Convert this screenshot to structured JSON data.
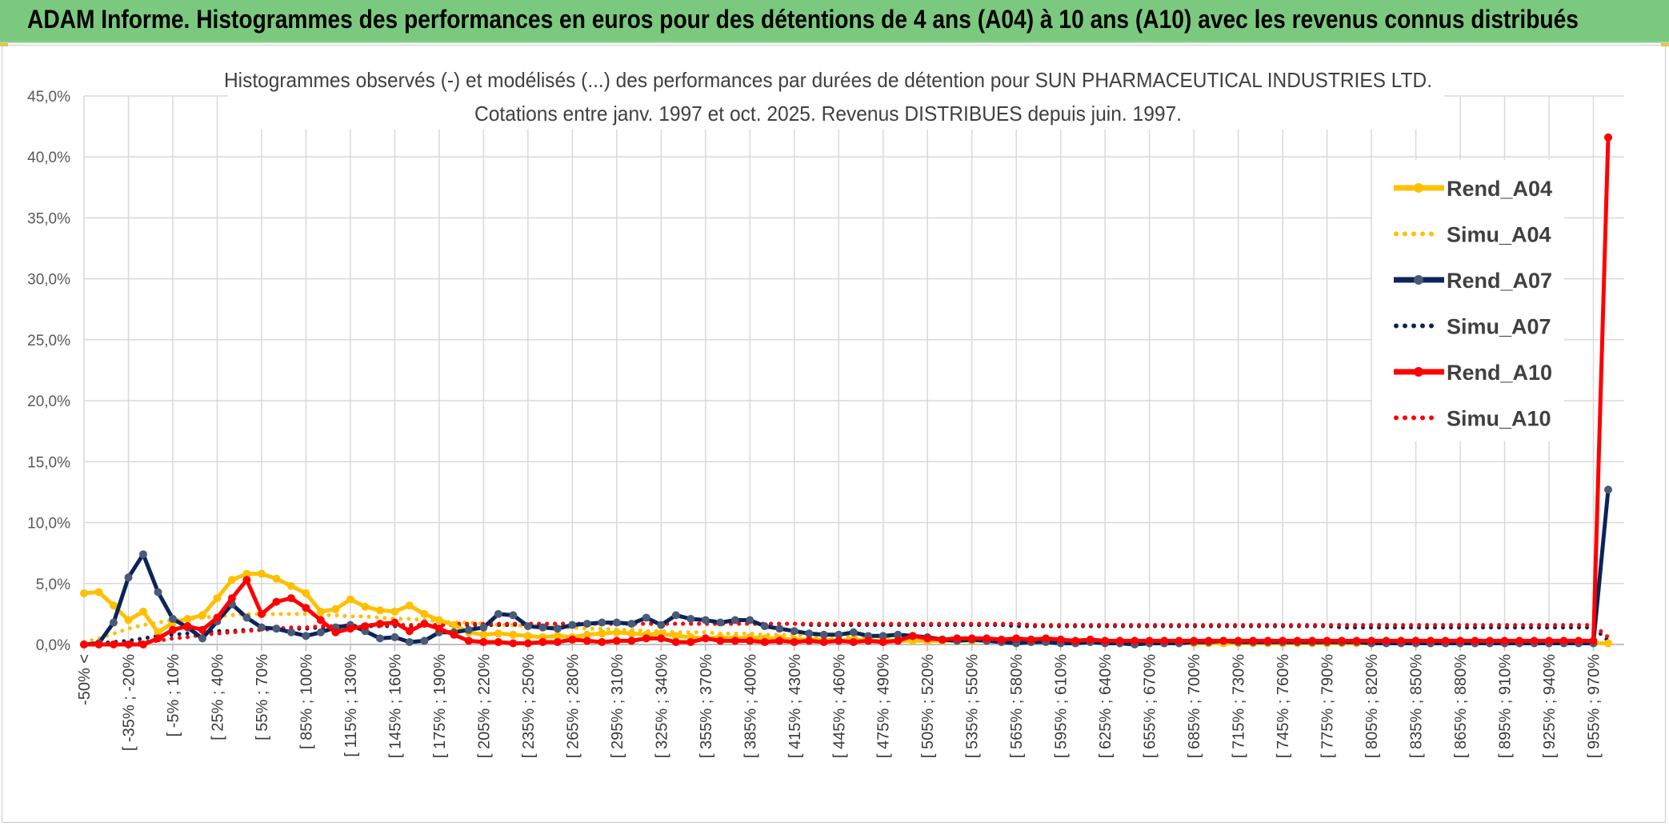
{
  "header": {
    "title": "ADAM Informe. Histogrammes des performances en euros pour des détentions de 4 ans (A04) à 10 ans (A10) avec les revenus connus distribués"
  },
  "chart_data": {
    "type": "line",
    "title": "Histogrammes observés (-) et modélisés (...) des performances par durées de détention pour SUN PHARMACEUTICAL INDUSTRIES LTD.",
    "subtitle": "Cotations entre janv. 1997 et oct. 2025. Revenus DISTRIBUES depuis juin. 1997.",
    "xlabel": "",
    "ylabel": "",
    "ylim": [
      0,
      45
    ],
    "yticks": [
      "0,0%",
      "5,0%",
      "10,0%",
      "15,0%",
      "20,0%",
      "25,0%",
      "30,0%",
      "35,0%",
      "40,0%",
      "45,0%"
    ],
    "xticklabels": [
      "-50% <",
      "[ -35% ; -20%",
      "[ -5% ; 10%",
      "[ 25% ; 40%",
      "[ 55% ; 70%",
      "[ 85% ; 100%",
      "[ 115% ; 130%",
      "[ 145% ; 160%",
      "[ 175% ; 190%",
      "[ 205% ; 220%",
      "[ 235% ; 250%",
      "[ 265% ; 280%",
      "[ 295% ; 310%",
      "[ 325% ; 340%",
      "[ 355% ; 370%",
      "[ 385% ; 400%",
      "[ 415% ; 430%",
      "[ 445% ; 460%",
      "[ 475% ; 490%",
      "[ 505% ; 520%",
      "[ 535% ; 550%",
      "[ 565% ; 580%",
      "[ 595% ; 610%",
      "[ 625% ; 640%",
      "[ 655% ; 670%",
      "[ 685% ; 700%",
      "[ 715% ; 730%",
      "[ 745% ; 760%",
      "[ 775% ; 790%",
      "[ 805% ; 820%",
      "[ 835% ; 850%",
      "[ 865% ; 880%",
      "[ 895% ; 910%",
      "[ 925% ; 940%",
      "[ 955% ; 970%"
    ],
    "grid": true,
    "legend_position": "right",
    "series": [
      {
        "name": "Rend_A04",
        "style": "solid",
        "color": "#ffc000",
        "values": [
          4.2,
          4.3,
          3.2,
          2.0,
          2.7,
          1.0,
          1.8,
          2.1,
          2.4,
          3.8,
          5.3,
          5.8,
          5.8,
          5.4,
          4.8,
          4.2,
          2.7,
          2.9,
          3.7,
          3.1,
          2.8,
          2.7,
          3.2,
          2.5,
          2.0,
          1.6,
          1.0,
          0.8,
          0.9,
          0.8,
          0.7,
          0.6,
          0.7,
          0.6,
          0.8,
          0.9,
          1.0,
          0.9,
          0.8,
          0.9,
          0.7,
          0.6,
          0.5,
          0.6,
          0.5,
          0.6,
          0.5,
          0.5,
          0.4,
          0.4,
          0.4,
          0.3,
          0.4,
          0.3,
          0.3,
          0.3,
          0.3,
          0.3,
          0.3,
          0.3,
          0.3,
          0.3,
          0.2,
          0.2,
          0.2,
          0.3,
          0.2,
          0.2,
          0.2,
          0.2,
          0.2,
          0.2,
          0.1,
          0.1,
          0.1,
          0.1,
          0.1,
          0.1,
          0.1,
          0.1,
          0.1,
          0.1,
          0.1,
          0.1,
          0.1,
          0.1,
          0.1,
          0.1,
          0.1,
          0.1,
          0.1,
          0.1,
          0.1,
          0.1,
          0.1,
          0.1,
          0.1,
          0.1,
          0.1,
          0.1,
          0.1,
          0.1,
          0.1,
          0.1
        ]
      },
      {
        "name": "Simu_A04",
        "style": "dotted",
        "color": "#ffc000",
        "values": [
          0.2,
          0.5,
          0.9,
          1.3,
          1.6,
          1.8,
          2.0,
          2.1,
          2.2,
          2.3,
          2.4,
          2.5,
          2.5,
          2.5,
          2.5,
          2.5,
          2.4,
          2.4,
          2.3,
          2.3,
          2.2,
          2.1,
          2.1,
          2.0,
          1.9,
          1.8,
          1.8,
          1.7,
          1.6,
          1.6,
          1.5,
          1.5,
          1.4,
          1.4,
          1.3,
          1.3,
          1.2,
          1.2,
          1.1,
          1.1,
          1.0,
          1.0,
          1.0,
          0.9,
          0.9,
          0.9,
          0.8,
          0.8,
          0.8,
          0.7,
          0.7,
          0.7,
          0.6,
          0.6,
          0.6,
          0.6,
          0.5,
          0.5,
          0.5,
          0.5,
          0.5,
          0.4,
          0.4,
          0.4,
          0.4,
          0.4,
          0.4,
          0.3,
          0.3,
          0.3,
          0.3,
          0.3,
          0.3,
          0.3,
          0.3,
          0.2,
          0.2,
          0.2,
          0.2,
          0.2,
          0.2,
          0.2,
          0.2,
          0.2,
          0.2,
          0.2,
          0.2,
          0.2,
          0.1,
          0.1,
          0.1,
          0.1,
          0.1,
          0.1,
          0.1,
          0.1,
          0.1,
          0.1,
          0.1,
          0.1,
          0.1,
          0.1,
          0.1,
          0.1
        ]
      },
      {
        "name": "Rend_A07",
        "style": "solid",
        "color": "#0b2459",
        "values": [
          0.0,
          0.1,
          1.8,
          5.5,
          7.4,
          4.3,
          2.1,
          1.4,
          0.5,
          1.9,
          3.3,
          2.2,
          1.4,
          1.3,
          1.0,
          0.7,
          1.0,
          1.4,
          1.6,
          1.1,
          0.5,
          0.6,
          0.2,
          0.3,
          1.0,
          1.0,
          1.2,
          1.4,
          2.5,
          2.4,
          1.5,
          1.4,
          1.3,
          1.6,
          1.7,
          1.8,
          1.8,
          1.7,
          2.2,
          1.6,
          2.4,
          2.1,
          2.0,
          1.8,
          2.0,
          2.0,
          1.5,
          1.3,
          1.1,
          0.9,
          0.8,
          0.8,
          1.0,
          0.7,
          0.7,
          0.8,
          0.7,
          0.6,
          0.4,
          0.3,
          0.4,
          0.3,
          0.2,
          0.1,
          0.2,
          0.2,
          0.1,
          0.1,
          0.2,
          0.1,
          0.1,
          0.0,
          0.1,
          0.1,
          0.1,
          0.2,
          0.2,
          0.3,
          0.2,
          0.2,
          0.2,
          0.2,
          0.2,
          0.2,
          0.2,
          0.2,
          0.2,
          0.1,
          0.1,
          0.1,
          0.1,
          0.1,
          0.1,
          0.1,
          0.1,
          0.1,
          0.1,
          0.1,
          0.1,
          0.1,
          0.1,
          0.1,
          0.1,
          12.7
        ]
      },
      {
        "name": "Simu_A07",
        "style": "dotted",
        "color": "#0b2459",
        "values": [
          0.0,
          0.1,
          0.2,
          0.3,
          0.5,
          0.7,
          0.8,
          0.9,
          1.0,
          1.1,
          1.1,
          1.2,
          1.2,
          1.3,
          1.3,
          1.3,
          1.4,
          1.4,
          1.4,
          1.5,
          1.5,
          1.5,
          1.5,
          1.6,
          1.6,
          1.6,
          1.6,
          1.6,
          1.6,
          1.6,
          1.7,
          1.7,
          1.7,
          1.7,
          1.7,
          1.7,
          1.7,
          1.7,
          1.7,
          1.7,
          1.7,
          1.7,
          1.7,
          1.7,
          1.7,
          1.7,
          1.7,
          1.7,
          1.7,
          1.6,
          1.6,
          1.6,
          1.6,
          1.6,
          1.6,
          1.6,
          1.6,
          1.6,
          1.6,
          1.6,
          1.6,
          1.6,
          1.6,
          1.5,
          1.5,
          1.5,
          1.5,
          1.5,
          1.5,
          1.5,
          1.5,
          1.5,
          1.5,
          1.5,
          1.5,
          1.5,
          1.5,
          1.5,
          1.5,
          1.5,
          1.5,
          1.5,
          1.5,
          1.5,
          1.5,
          1.4,
          1.4,
          1.4,
          1.4,
          1.4,
          1.4,
          1.4,
          1.4,
          1.4,
          1.4,
          1.4,
          1.4,
          1.4,
          1.4,
          1.4,
          1.4,
          1.4,
          1.4,
          0.3
        ]
      },
      {
        "name": "Rend_A10",
        "style": "solid",
        "color": "#ff0000",
        "values": [
          0.0,
          0.0,
          0.0,
          0.0,
          0.0,
          0.5,
          1.2,
          1.5,
          1.2,
          2.2,
          3.8,
          5.3,
          2.5,
          3.5,
          3.8,
          3.0,
          2.0,
          1.0,
          1.3,
          1.5,
          1.7,
          1.8,
          1.1,
          1.7,
          1.3,
          0.8,
          0.3,
          0.2,
          0.2,
          0.1,
          0.1,
          0.2,
          0.2,
          0.4,
          0.3,
          0.2,
          0.3,
          0.3,
          0.5,
          0.5,
          0.2,
          0.2,
          0.5,
          0.3,
          0.3,
          0.3,
          0.2,
          0.3,
          0.2,
          0.3,
          0.2,
          0.3,
          0.2,
          0.3,
          0.2,
          0.3,
          0.7,
          0.5,
          0.4,
          0.5,
          0.5,
          0.5,
          0.4,
          0.5,
          0.4,
          0.5,
          0.4,
          0.3,
          0.4,
          0.3,
          0.3,
          0.3,
          0.3,
          0.3,
          0.3,
          0.3,
          0.3,
          0.3,
          0.3,
          0.3,
          0.3,
          0.3,
          0.3,
          0.3,
          0.3,
          0.3,
          0.3,
          0.3,
          0.3,
          0.3,
          0.3,
          0.3,
          0.3,
          0.3,
          0.3,
          0.3,
          0.3,
          0.3,
          0.3,
          0.3,
          0.3,
          0.3,
          0.3,
          41.6
        ]
      },
      {
        "name": "Simu_A10",
        "style": "dotted",
        "color": "#ff0000",
        "values": [
          0.0,
          0.0,
          0.1,
          0.1,
          0.2,
          0.3,
          0.5,
          0.6,
          0.8,
          0.9,
          1.0,
          1.1,
          1.2,
          1.3,
          1.4,
          1.4,
          1.5,
          1.5,
          1.5,
          1.6,
          1.6,
          1.6,
          1.6,
          1.6,
          1.6,
          1.7,
          1.7,
          1.7,
          1.7,
          1.7,
          1.7,
          1.7,
          1.7,
          1.7,
          1.7,
          1.7,
          1.7,
          1.7,
          1.7,
          1.7,
          1.7,
          1.7,
          1.7,
          1.7,
          1.7,
          1.7,
          1.7,
          1.7,
          1.7,
          1.7,
          1.7,
          1.7,
          1.7,
          1.7,
          1.7,
          1.7,
          1.7,
          1.7,
          1.7,
          1.7,
          1.7,
          1.7,
          1.7,
          1.7,
          1.6,
          1.6,
          1.6,
          1.6,
          1.6,
          1.6,
          1.6,
          1.6,
          1.6,
          1.6,
          1.6,
          1.6,
          1.6,
          1.6,
          1.6,
          1.6,
          1.6,
          1.6,
          1.6,
          1.6,
          1.6,
          1.6,
          1.6,
          1.6,
          1.6,
          1.6,
          1.6,
          1.6,
          1.6,
          1.6,
          1.6,
          1.6,
          1.6,
          1.6,
          1.6,
          1.6,
          1.6,
          1.6,
          1.6,
          0.6
        ]
      }
    ]
  }
}
